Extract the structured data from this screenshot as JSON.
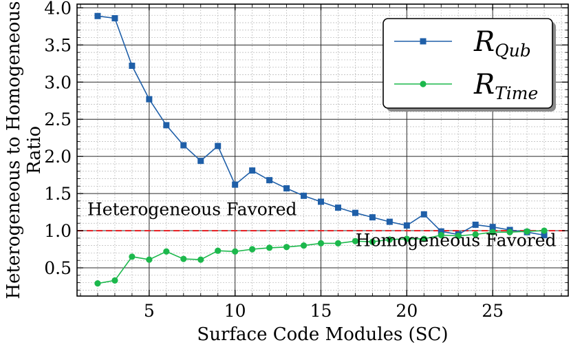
{
  "chart_data": {
    "type": "line",
    "title": "",
    "xlabel": "Surface Code Modules (SC)",
    "ylabel": [
      "Heterogeneous to Homogeneous",
      "Ratio"
    ],
    "xlim": [
      0.8,
      29.4
    ],
    "ylim": [
      0.12,
      4.05
    ],
    "x_ticks": [
      5,
      10,
      15,
      20,
      25
    ],
    "x_tick_labels": [
      "5",
      "10",
      "15",
      "20",
      "25"
    ],
    "y_ticks": [
      0.5,
      1.0,
      1.5,
      2.0,
      2.5,
      3.0,
      3.5,
      4.0
    ],
    "y_tick_labels": [
      "0.5",
      "1.0",
      "1.5",
      "2.0",
      "2.5",
      "3.0",
      "3.5",
      "4.0"
    ],
    "grid": true,
    "legend_position": "top-right",
    "series": [
      {
        "name": "R_Qub",
        "label_main": "R",
        "label_sub": "Qub",
        "color": "#1f5fa8",
        "marker": "square",
        "x": [
          2,
          3,
          4,
          5,
          6,
          7,
          8,
          9,
          10,
          11,
          12,
          13,
          14,
          15,
          16,
          17,
          18,
          19,
          20,
          21,
          22,
          23,
          24,
          25,
          26,
          27,
          28
        ],
        "values": [
          3.89,
          3.86,
          3.22,
          2.77,
          2.42,
          2.15,
          1.94,
          2.14,
          1.62,
          1.81,
          1.68,
          1.57,
          1.47,
          1.39,
          1.31,
          1.24,
          1.18,
          1.12,
          1.07,
          1.22,
          0.99,
          0.95,
          1.08,
          1.05,
          1.01,
          0.98,
          0.94
        ]
      },
      {
        "name": "R_Time",
        "label_main": "R",
        "label_sub": "Time",
        "color": "#1cb84c",
        "marker": "circle",
        "x": [
          2,
          3,
          4,
          5,
          6,
          7,
          8,
          9,
          10,
          11,
          12,
          13,
          14,
          15,
          16,
          17,
          18,
          19,
          20,
          21,
          22,
          23,
          24,
          25,
          26,
          27,
          28
        ],
        "values": [
          0.29,
          0.33,
          0.65,
          0.61,
          0.72,
          0.62,
          0.61,
          0.73,
          0.72,
          0.75,
          0.77,
          0.78,
          0.8,
          0.83,
          0.83,
          0.86,
          0.85,
          0.88,
          0.89,
          0.89,
          0.94,
          0.93,
          0.95,
          0.98,
          0.98,
          0.99,
          1.0
        ]
      }
    ],
    "reference_line": {
      "y": 1.0,
      "color": "#e8262a",
      "style": "dashed"
    },
    "annotations": [
      {
        "text": "Heterogeneous Favored",
        "x": 1.4,
        "y": 1.21
      },
      {
        "text": "Homogeneous Favored",
        "x": 28.7,
        "y": 0.79
      }
    ]
  }
}
